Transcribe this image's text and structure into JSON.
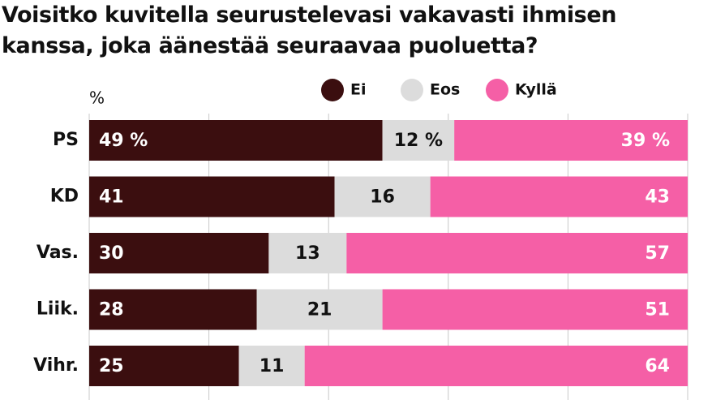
{
  "chart_data": {
    "type": "stacked-barh",
    "title": "Voisitko kuvitella seurustelevasi vakavasti ihmisen kanssa, joka äänestää seuraavaa puoluetta?",
    "unit": "%",
    "categories": [
      "PS",
      "KD",
      "Vas.",
      "Liik.",
      "Vihr."
    ],
    "series": [
      {
        "name": "Ei",
        "color": "#3b0e0f",
        "values": [
          49,
          41,
          30,
          28,
          25
        ],
        "value_labels": [
          "49 %",
          "41",
          "30",
          "28",
          "25"
        ]
      },
      {
        "name": "Eos",
        "color": "#dcdcdc",
        "values": [
          12,
          16,
          13,
          21,
          11
        ],
        "value_labels": [
          "12 %",
          "16",
          "13",
          "21",
          "11"
        ]
      },
      {
        "name": "Kyllä",
        "color": "#f55fa6",
        "values": [
          39,
          43,
          57,
          51,
          64
        ],
        "value_labels": [
          "39 %",
          "43",
          "57",
          "51",
          "64"
        ]
      }
    ],
    "xlim": [
      0,
      100
    ],
    "xticks": [
      0,
      20,
      40,
      60,
      80,
      100
    ],
    "grid": true
  }
}
